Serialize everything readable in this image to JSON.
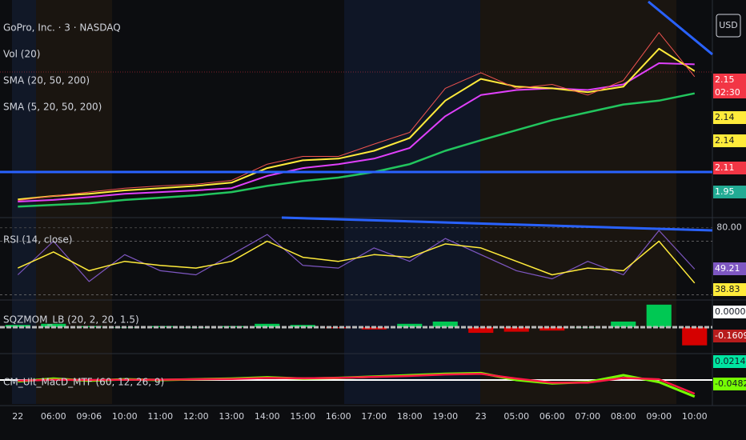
{
  "header": {
    "currency": "USD"
  },
  "chart_data": [
    {
      "type": "line",
      "title": "GoPro, Inc. · 3 · NASDAQ",
      "indicators": [
        "Vol (20)",
        "SMA (20, 50, 200)",
        "SMA (5, 20, 50, 200)"
      ],
      "categories": [
        "22",
        "06:00",
        "09:06",
        "10:00",
        "11:00",
        "12:00",
        "13:00",
        "14:00",
        "15:00",
        "16:00",
        "17:00",
        "18:00",
        "19:00",
        "23",
        "05:00",
        "06:00",
        "07:00",
        "08:00",
        "09:00",
        "10:00"
      ],
      "ylim": [
        1.91,
        2.28
      ],
      "series": [
        {
          "color": "#22c55e",
          "width": 2.5,
          "values": [
            1.924,
            1.927,
            1.93,
            1.936,
            1.94,
            1.944,
            1.95,
            1.961,
            1.97,
            1.976,
            1.986,
            2.0,
            2.024,
            2.043,
            2.061,
            2.079,
            2.093,
            2.107,
            2.114,
            2.127
          ]
        },
        {
          "color": "#e040fb",
          "width": 2,
          "values": [
            1.933,
            1.936,
            1.941,
            1.947,
            1.95,
            1.953,
            1.957,
            1.979,
            1.993,
            2.0,
            2.01,
            2.029,
            2.086,
            2.124,
            2.133,
            2.136,
            2.133,
            2.143,
            2.181,
            2.179
          ]
        },
        {
          "color": "#ffeb3b",
          "width": 2,
          "values": [
            1.937,
            1.943,
            1.947,
            1.953,
            1.957,
            1.961,
            1.967,
            1.993,
            2.007,
            2.01,
            2.024,
            2.047,
            2.114,
            2.153,
            2.139,
            2.136,
            2.129,
            2.139,
            2.207,
            2.167
          ]
        },
        {
          "color": "#ef5350",
          "width": 1,
          "values": [
            1.935,
            1.943,
            1.95,
            1.957,
            1.961,
            1.964,
            1.971,
            2.0,
            2.014,
            2.014,
            2.036,
            2.057,
            2.136,
            2.164,
            2.136,
            2.143,
            2.124,
            2.15,
            2.236,
            2.157
          ]
        }
      ],
      "badges": [
        {
          "value": 2.15,
          "color": "#f23645",
          "text_color": "#ffffff"
        },
        {
          "value": 2.14,
          "color": "#ffeb3b",
          "text_color": "#131722"
        },
        {
          "value": 2.14,
          "color": "#ffeb3b",
          "text_color": "#131722"
        },
        {
          "value": 2.11,
          "color": "#f23645",
          "text_color": "#ffffff"
        },
        {
          "value": 1.95,
          "color": "#22ab94",
          "text_color": "#ffffff"
        }
      ],
      "countdown": "02:30"
    },
    {
      "type": "line",
      "title": "RSI (14, close)",
      "ylim": [
        28,
        84
      ],
      "yticks": [
        {
          "value": 80,
          "label": "80.00"
        }
      ],
      "bands": [
        70,
        30
      ],
      "series": [
        {
          "color": "#7e57c2",
          "width": 1.2,
          "values": [
            45,
            70,
            40,
            60,
            48,
            45,
            60,
            75,
            52,
            50,
            65,
            55,
            72,
            60,
            48,
            42,
            55,
            45,
            78,
            49.21
          ]
        },
        {
          "color": "#ffeb3b",
          "width": 1.5,
          "values": [
            50,
            62,
            48,
            55,
            52,
            50,
            55,
            70,
            58,
            55,
            60,
            58,
            68,
            65,
            55,
            45,
            50,
            48,
            70,
            38.83
          ]
        }
      ],
      "badges": [
        {
          "value": 49.21,
          "color": "#7e57c2",
          "text_color": "#ffffff"
        },
        {
          "value": 38.83,
          "color": "#ffeb3b",
          "text_color": "#131722"
        }
      ]
    },
    {
      "type": "bar",
      "title": "SQZMOM_LB (20, 2, 20, 1.5)",
      "ylim": [
        -0.22,
        0.22
      ],
      "series": [
        {
          "color": "#00c853",
          "negative_color": "#d50000",
          "values": [
            0.02,
            0.03,
            0.01,
            0.0,
            0.01,
            0.0,
            0.01,
            0.03,
            0.02,
            -0.01,
            -0.02,
            0.03,
            0.05,
            -0.05,
            -0.04,
            -0.03,
            0.0,
            0.05,
            0.2,
            -0.1609
          ]
        }
      ],
      "badges": [
        {
          "value": 0.0,
          "label": "0.0000",
          "color": "#ffffff",
          "text_color": "#131722"
        },
        {
          "value": -0.1609,
          "color": "#b71c1c",
          "text_color": "#ffffff"
        }
      ]
    },
    {
      "type": "line",
      "title": "CM_Ult_MacD_MTF (60, 12, 26, 9)",
      "ylim": [
        -0.07,
        0.07
      ],
      "series": [
        {
          "color": "#76ff03",
          "width": 3,
          "values": [
            -0.004,
            0.004,
            -0.002,
            0.002,
            0.0,
            0.002,
            0.004,
            0.008,
            0.004,
            0.006,
            0.01,
            0.014,
            0.018,
            0.02,
            0.0,
            -0.01,
            -0.006,
            0.014,
            -0.006,
            -0.0482
          ]
        },
        {
          "color": "#ff1744",
          "width": 2.5,
          "values": [
            -0.002,
            0.001,
            0.0,
            0.001,
            0.001,
            0.002,
            0.003,
            0.006,
            0.005,
            0.006,
            0.009,
            0.012,
            0.016,
            0.018,
            0.004,
            -0.008,
            -0.008,
            0.006,
            0.002,
            -0.04
          ]
        }
      ],
      "badges": [
        {
          "value": 0.0214,
          "color": "#00e5a0",
          "text_color": "#131722"
        },
        {
          "value": -0.0482,
          "color": "#76ff03",
          "text_color": "#131722"
        }
      ]
    }
  ]
}
